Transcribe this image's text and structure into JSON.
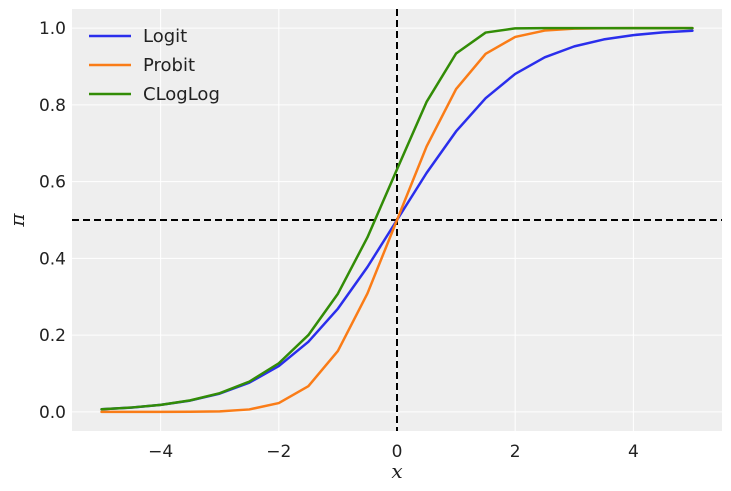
{
  "chart_data": {
    "type": "line",
    "xlabel": "x",
    "ylabel": "π",
    "xlim": [
      -5.5,
      5.5
    ],
    "ylim": [
      -0.05,
      1.05
    ],
    "xticks": [
      -4,
      -2,
      0,
      2,
      4
    ],
    "xtick_labels": [
      "−4",
      "−2",
      "0",
      "2",
      "4"
    ],
    "yticks": [
      0.0,
      0.2,
      0.4,
      0.6,
      0.8,
      1.0
    ],
    "ytick_labels": [
      "0.0",
      "0.2",
      "0.4",
      "0.6",
      "0.8",
      "1.0"
    ],
    "grid": true,
    "legend_position": "top-left",
    "reference_lines": [
      {
        "orientation": "vertical",
        "value": 0,
        "style": "dashed",
        "color": "#000000"
      },
      {
        "orientation": "horizontal",
        "value": 0.5,
        "style": "dashed",
        "color": "#000000"
      }
    ],
    "x": [
      -5,
      -4.5,
      -4,
      -3.5,
      -3,
      -2.5,
      -2,
      -1.5,
      -1,
      -0.5,
      0,
      0.5,
      1,
      1.5,
      2,
      2.5,
      3,
      3.5,
      4,
      4.5,
      5
    ],
    "series": [
      {
        "name": "Logit",
        "color": "#2a2eec",
        "values": [
          0.0067,
          0.011,
          0.018,
          0.0293,
          0.0474,
          0.0759,
          0.1192,
          0.1824,
          0.2689,
          0.3775,
          0.5,
          0.6225,
          0.7311,
          0.8176,
          0.8808,
          0.9241,
          0.9526,
          0.9707,
          0.982,
          0.989,
          0.9933
        ]
      },
      {
        "name": "Probit",
        "color": "#fa7c17",
        "values": [
          0.0,
          0.0,
          0.0,
          0.0002,
          0.0013,
          0.0062,
          0.0228,
          0.0668,
          0.1587,
          0.3085,
          0.5,
          0.6915,
          0.8413,
          0.9332,
          0.9772,
          0.9938,
          0.9987,
          0.9998,
          1.0,
          1.0,
          1.0
        ]
      },
      {
        "name": "CLogLog",
        "color": "#328c06",
        "values": [
          0.0067,
          0.0111,
          0.0181,
          0.0298,
          0.0486,
          0.0787,
          0.1266,
          0.2,
          0.3078,
          0.4548,
          0.6321,
          0.8077,
          0.934,
          0.9886,
          0.9994,
          1.0,
          1.0,
          1.0,
          1.0,
          1.0,
          1.0
        ]
      }
    ]
  }
}
